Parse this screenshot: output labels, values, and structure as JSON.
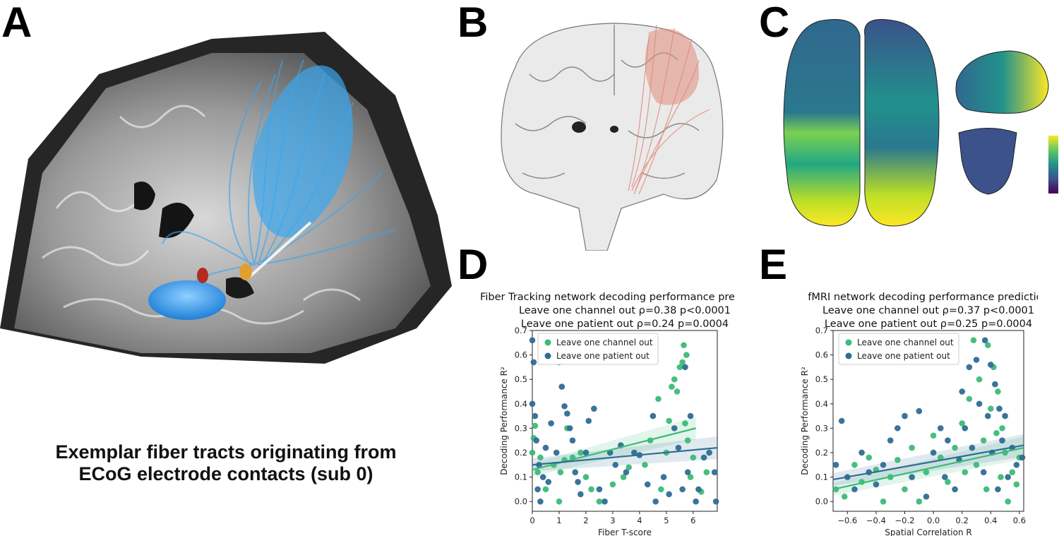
{
  "panels": {
    "a": {
      "letter": "A",
      "caption_line1": "Exemplar fiber tracts originating from",
      "caption_line2": "ECoG electrode contacts (sub 0)"
    },
    "b": {
      "letter": "B"
    },
    "c": {
      "letter": "C"
    },
    "d": {
      "letter": "D"
    },
    "e": {
      "letter": "E"
    }
  },
  "colors": {
    "channel": "#3dbb78",
    "patient": "#2e6d93",
    "fiber_blue": "#3aa6f0",
    "fiber_red": "#e08a7a"
  },
  "chart_data": [
    {
      "id": "D",
      "type": "scatter",
      "title_lines": [
        "Fiber Tracking network decoding performance prediction",
        "Leave one channel out ρ=0.38 p<0.0001",
        "Leave one patient out ρ=0.24 p=0.0004"
      ],
      "xlabel": "Fiber T-score",
      "ylabel": "Decoding Performance R²",
      "xlim": [
        0,
        6.9
      ],
      "ylim": [
        -0.04,
        0.7
      ],
      "xticks": [
        0,
        1,
        2,
        3,
        4,
        5,
        6
      ],
      "yticks": [
        0.0,
        0.1,
        0.2,
        0.3,
        0.4,
        0.5,
        0.6,
        0.7
      ],
      "legend": {
        "position": "top-left",
        "entries": [
          "Leave one channel out",
          "Leave one patient out"
        ]
      },
      "series": [
        {
          "name": "Leave one channel out",
          "color": "#3dbb78",
          "fit": {
            "x": [
              0,
              6.1
            ],
            "y": [
              0.13,
              0.3
            ]
          },
          "points": [
            [
              0.0,
              0.2
            ],
            [
              0.05,
              0.26
            ],
            [
              0.1,
              0.31
            ],
            [
              0.2,
              0.12
            ],
            [
              0.3,
              0.18
            ],
            [
              0.5,
              0.05
            ],
            [
              0.8,
              0.15
            ],
            [
              1.0,
              0.0
            ],
            [
              1.05,
              0.12
            ],
            [
              1.2,
              0.17
            ],
            [
              1.3,
              0.3
            ],
            [
              1.5,
              0.18
            ],
            [
              1.8,
              0.2
            ],
            [
              2.0,
              0.1
            ],
            [
              2.2,
              0.05
            ],
            [
              2.5,
              0.0
            ],
            [
              3.0,
              0.07
            ],
            [
              3.4,
              0.1
            ],
            [
              3.6,
              0.14
            ],
            [
              4.2,
              0.15
            ],
            [
              4.4,
              0.25
            ],
            [
              4.7,
              0.42
            ],
            [
              4.8,
              0.05
            ],
            [
              5.0,
              0.2
            ],
            [
              5.1,
              0.33
            ],
            [
              5.2,
              0.47
            ],
            [
              5.3,
              0.5
            ],
            [
              5.4,
              0.45
            ],
            [
              5.5,
              0.55
            ],
            [
              5.6,
              0.57
            ],
            [
              5.65,
              0.64
            ],
            [
              5.7,
              0.32
            ],
            [
              5.75,
              0.6
            ],
            [
              5.8,
              0.25
            ],
            [
              5.9,
              0.1
            ],
            [
              6.0,
              0.18
            ],
            [
              6.3,
              0.04
            ],
            [
              6.5,
              0.12
            ]
          ]
        },
        {
          "name": "Leave one patient out",
          "color": "#2e6d93",
          "fit": {
            "x": [
              0,
              6.9
            ],
            "y": [
              0.15,
              0.22
            ]
          },
          "points": [
            [
              0.0,
              0.66
            ],
            [
              0.0,
              0.4
            ],
            [
              0.05,
              0.57
            ],
            [
              0.1,
              0.35
            ],
            [
              0.15,
              0.25
            ],
            [
              0.2,
              0.05
            ],
            [
              0.25,
              0.15
            ],
            [
              0.3,
              0.0
            ],
            [
              0.4,
              0.1
            ],
            [
              0.5,
              0.22
            ],
            [
              0.6,
              0.08
            ],
            [
              0.7,
              0.32
            ],
            [
              0.9,
              0.2
            ],
            [
              1.0,
              0.57
            ],
            [
              1.1,
              0.47
            ],
            [
              1.2,
              0.39
            ],
            [
              1.3,
              0.36
            ],
            [
              1.4,
              0.3
            ],
            [
              1.5,
              0.25
            ],
            [
              1.6,
              0.12
            ],
            [
              1.7,
              0.08
            ],
            [
              1.8,
              0.03
            ],
            [
              2.0,
              0.2
            ],
            [
              2.1,
              0.33
            ],
            [
              2.3,
              0.38
            ],
            [
              2.5,
              0.05
            ],
            [
              2.7,
              0.0
            ],
            [
              2.9,
              0.2
            ],
            [
              3.1,
              0.15
            ],
            [
              3.3,
              0.23
            ],
            [
              3.5,
              0.12
            ],
            [
              3.8,
              0.2
            ],
            [
              4.0,
              0.19
            ],
            [
              4.3,
              0.07
            ],
            [
              4.5,
              0.35
            ],
            [
              4.6,
              0.0
            ],
            [
              4.9,
              0.1
            ],
            [
              5.1,
              0.03
            ],
            [
              5.3,
              0.3
            ],
            [
              5.45,
              0.22
            ],
            [
              5.6,
              0.05
            ],
            [
              5.7,
              0.55
            ],
            [
              5.8,
              0.12
            ],
            [
              5.9,
              0.35
            ],
            [
              6.1,
              0.0
            ],
            [
              6.2,
              0.05
            ],
            [
              6.4,
              0.18
            ],
            [
              6.6,
              0.2
            ],
            [
              6.8,
              0.12
            ],
            [
              6.85,
              0.0
            ]
          ]
        }
      ]
    },
    {
      "id": "E",
      "type": "scatter",
      "title_lines": [
        "fMRI network decoding performance prediction",
        "Leave one channel out ρ=0.37 p<0.0001",
        "Leave one patient out ρ=0.25 p=0.0004"
      ],
      "xlabel": "Spatial Correlation R",
      "ylabel": "Decoding Performance R²",
      "xlim": [
        -0.7,
        0.63
      ],
      "ylim": [
        -0.04,
        0.7
      ],
      "xticks": [
        -0.6,
        -0.4,
        -0.2,
        0.0,
        0.2,
        0.4,
        0.6
      ],
      "yticks": [
        0.0,
        0.1,
        0.2,
        0.3,
        0.4,
        0.5,
        0.6,
        0.7
      ],
      "legend": {
        "position": "top-left",
        "entries": [
          "Leave one channel out",
          "Leave one patient out"
        ]
      },
      "series": [
        {
          "name": "Leave one channel out",
          "color": "#3dbb78",
          "fit": {
            "x": [
              -0.7,
              0.63
            ],
            "y": [
              0.05,
              0.22
            ]
          },
          "points": [
            [
              -0.68,
              0.05
            ],
            [
              -0.62,
              0.02
            ],
            [
              -0.55,
              0.15
            ],
            [
              -0.5,
              0.08
            ],
            [
              -0.45,
              0.18
            ],
            [
              -0.4,
              0.13
            ],
            [
              -0.35,
              0.0
            ],
            [
              -0.3,
              0.1
            ],
            [
              -0.25,
              0.17
            ],
            [
              -0.2,
              0.05
            ],
            [
              -0.15,
              0.22
            ],
            [
              -0.1,
              0.0
            ],
            [
              -0.05,
              0.12
            ],
            [
              0.0,
              0.27
            ],
            [
              0.05,
              0.18
            ],
            [
              0.1,
              0.08
            ],
            [
              0.15,
              0.22
            ],
            [
              0.2,
              0.32
            ],
            [
              0.22,
              0.12
            ],
            [
              0.25,
              0.42
            ],
            [
              0.28,
              0.66
            ],
            [
              0.3,
              0.15
            ],
            [
              0.32,
              0.5
            ],
            [
              0.35,
              0.25
            ],
            [
              0.37,
              0.05
            ],
            [
              0.38,
              0.64
            ],
            [
              0.4,
              0.38
            ],
            [
              0.42,
              0.55
            ],
            [
              0.44,
              0.28
            ],
            [
              0.45,
              0.45
            ],
            [
              0.47,
              0.1
            ],
            [
              0.48,
              0.3
            ],
            [
              0.5,
              0.2
            ],
            [
              0.52,
              0.0
            ],
            [
              0.55,
              0.12
            ],
            [
              0.58,
              0.07
            ],
            [
              0.6,
              0.18
            ]
          ]
        },
        {
          "name": "Leave one patient out",
          "color": "#2e6d93",
          "fit": {
            "x": [
              -0.7,
              0.63
            ],
            "y": [
              0.09,
              0.23
            ]
          },
          "points": [
            [
              -0.68,
              0.15
            ],
            [
              -0.64,
              0.33
            ],
            [
              -0.6,
              0.1
            ],
            [
              -0.55,
              0.05
            ],
            [
              -0.5,
              0.2
            ],
            [
              -0.45,
              0.12
            ],
            [
              -0.4,
              0.07
            ],
            [
              -0.35,
              0.15
            ],
            [
              -0.3,
              0.25
            ],
            [
              -0.25,
              0.3
            ],
            [
              -0.2,
              0.35
            ],
            [
              -0.15,
              0.1
            ],
            [
              -0.1,
              0.37
            ],
            [
              -0.05,
              0.02
            ],
            [
              0.0,
              0.2
            ],
            [
              0.05,
              0.3
            ],
            [
              0.08,
              0.1
            ],
            [
              0.1,
              0.25
            ],
            [
              0.15,
              0.05
            ],
            [
              0.18,
              0.17
            ],
            [
              0.2,
              0.45
            ],
            [
              0.22,
              0.3
            ],
            [
              0.25,
              0.55
            ],
            [
              0.27,
              0.22
            ],
            [
              0.3,
              0.58
            ],
            [
              0.32,
              0.4
            ],
            [
              0.35,
              0.12
            ],
            [
              0.36,
              0.66
            ],
            [
              0.38,
              0.35
            ],
            [
              0.4,
              0.56
            ],
            [
              0.41,
              0.2
            ],
            [
              0.43,
              0.48
            ],
            [
              0.45,
              0.05
            ],
            [
              0.46,
              0.38
            ],
            [
              0.48,
              0.25
            ],
            [
              0.5,
              0.35
            ],
            [
              0.52,
              0.1
            ],
            [
              0.55,
              0.22
            ],
            [
              0.58,
              0.15
            ],
            [
              0.62,
              0.18
            ]
          ]
        }
      ]
    }
  ]
}
